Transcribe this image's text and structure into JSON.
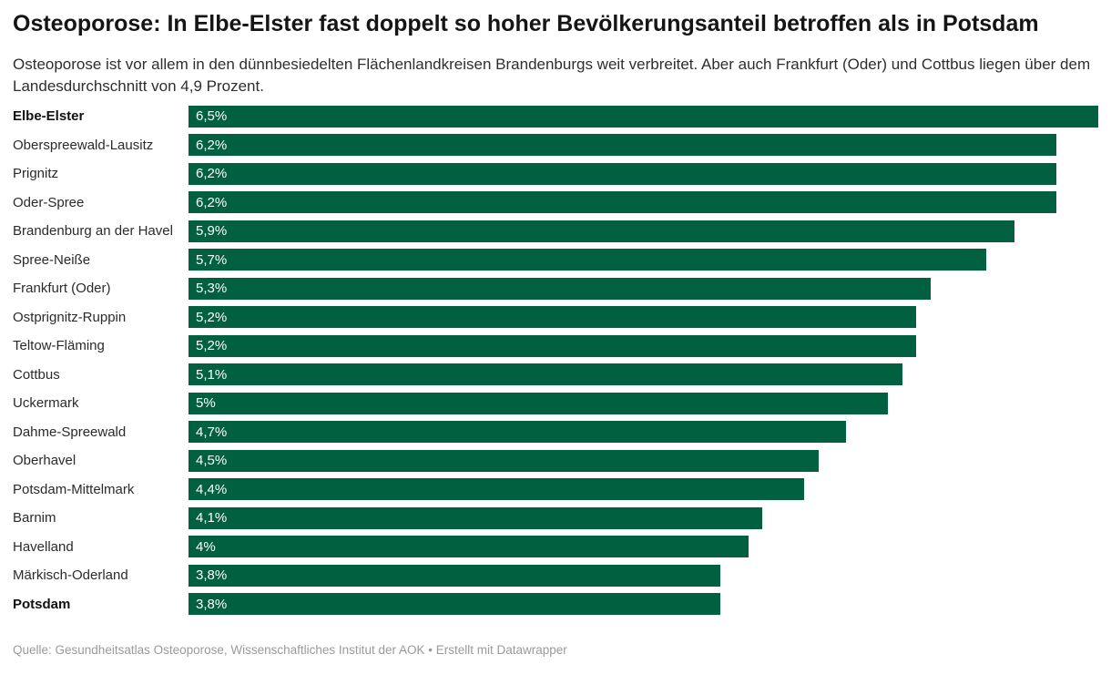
{
  "header": {
    "title": "Osteoporose: In Elbe-Elster fast doppelt so hoher Bevölkerungsanteil betroffen als in Potsdam",
    "subtitle": "Osteoporose ist vor allem in den dünnbesiedelten Flächenlandkreisen Brandenburgs weit verbreitet. Aber auch Frankfurt (Oder) und Cottbus liegen über dem Landesdurchschnitt von 4,9 Prozent."
  },
  "footer": {
    "source": "Quelle: Gesundheitsatlas Osteoporose, Wissenschaftliches Institut der AOK • Erstellt mit Datawrapper"
  },
  "colors": {
    "bar": "#00603f",
    "value_label": "#ffffff",
    "title_text": "#151515",
    "label_text": "#2b2b2b",
    "source_text": "#9a9a9a"
  },
  "chart_data": {
    "type": "bar",
    "orientation": "horizontal",
    "title": "Osteoporose: In Elbe-Elster fast doppelt so hoher Bevölkerungsanteil betroffen als in Potsdam",
    "subtitle": "Osteoporose ist vor allem in den dünnbesiedelten Flächenlandkreisen Brandenburgs weit verbreitet. Aber auch Frankfurt (Oder) und Cottbus liegen über dem Landesdurchschnitt von 4,9 Prozent.",
    "source": "Quelle: Gesundheitsatlas Osteoporose, Wissenschaftliches Institut der AOK • Erstellt mit Datawrapper",
    "unit": "%",
    "xlim": [
      0,
      6.5
    ],
    "grid": false,
    "legend": false,
    "value_labels_position": "inside-left",
    "categories": [
      "Elbe-Elster",
      "Oberspreewald-Lausitz",
      "Prignitz",
      "Oder-Spree",
      "Brandenburg an der Havel",
      "Spree-Neiße",
      "Frankfurt (Oder)",
      "Ostprignitz-Ruppin",
      "Teltow-Fläming",
      "Cottbus",
      "Uckermark",
      "Dahme-Spreewald",
      "Oberhavel",
      "Potsdam-Mittelmark",
      "Barnim",
      "Havelland",
      "Märkisch-Oderland",
      "Potsdam"
    ],
    "values": [
      6.5,
      6.2,
      6.2,
      6.2,
      5.9,
      5.7,
      5.3,
      5.2,
      5.2,
      5.1,
      5.0,
      4.7,
      4.5,
      4.4,
      4.1,
      4.0,
      3.8,
      3.8
    ],
    "value_labels": [
      "6,5%",
      "6,2%",
      "6,2%",
      "6,2%",
      "5,9%",
      "5,7%",
      "5,3%",
      "5,2%",
      "5,2%",
      "5,1%",
      "5%",
      "4,7%",
      "4,5%",
      "4,4%",
      "4,1%",
      "4%",
      "3,8%",
      "3,8%"
    ],
    "bold_categories": [
      "Elbe-Elster",
      "Potsdam"
    ],
    "max_value": 6.5
  }
}
